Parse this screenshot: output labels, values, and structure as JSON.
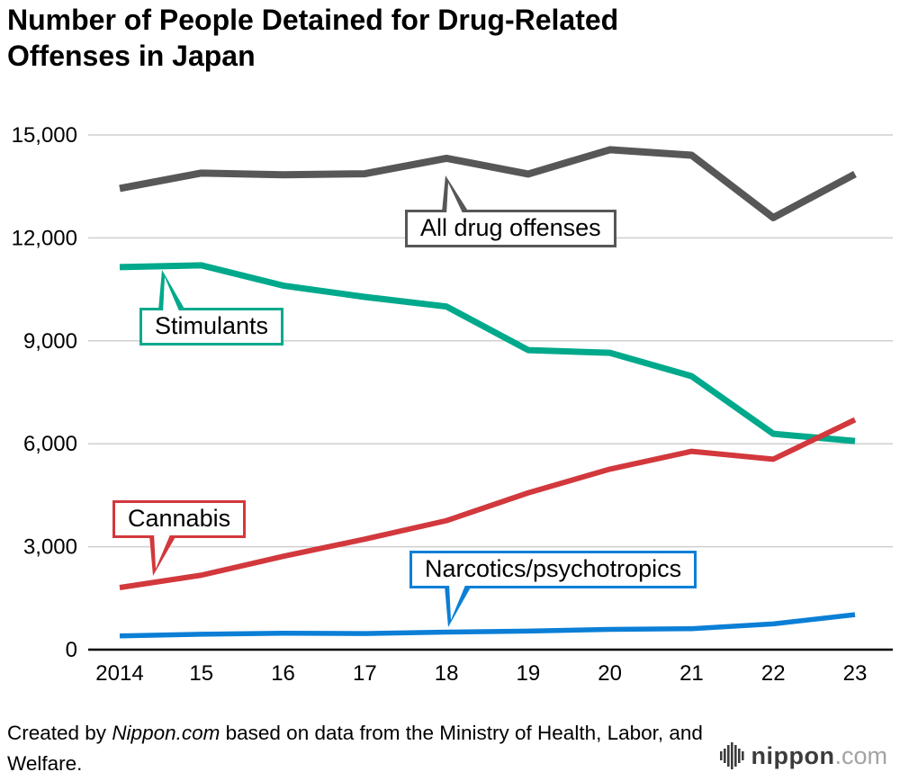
{
  "page": {
    "title": "Number of People Detained for Drug-Related Offenses in Japan"
  },
  "chart_data": {
    "type": "line",
    "title": "Number of People Detained for Drug-Related Offenses in Japan",
    "x": [
      2014,
      2015,
      2016,
      2017,
      2018,
      2019,
      2020,
      2021,
      2022,
      2023
    ],
    "categories": [
      "2014",
      "15",
      "16",
      "17",
      "18",
      "19",
      "20",
      "21",
      "22",
      "23"
    ],
    "ylim": [
      0,
      15000
    ],
    "y_ticks": [
      0,
      3000,
      6000,
      9000,
      12000,
      15000
    ],
    "y_tick_labels": [
      "0",
      "3,000",
      "6,000",
      "9,000",
      "12,000",
      "15,000"
    ],
    "grid": true,
    "legend_position": "inline-callouts",
    "series": [
      {
        "name": "All drug offenses",
        "color": "#575757",
        "values": [
          13440,
          13890,
          13840,
          13870,
          14320,
          13860,
          14570,
          14410,
          12590,
          13860
        ]
      },
      {
        "name": "Stimulants",
        "color": "#00a98b",
        "values": [
          11150,
          11200,
          10610,
          10280,
          10000,
          8730,
          8650,
          7970,
          6290,
          6080
        ]
      },
      {
        "name": "Cannabis",
        "color": "#d2383c",
        "values": [
          1810,
          2170,
          2720,
          3220,
          3760,
          4570,
          5260,
          5780,
          5550,
          6700
        ]
      },
      {
        "name": "Narcotics/psychotropics",
        "color": "#0b7fd6",
        "values": [
          400,
          450,
          480,
          470,
          510,
          540,
          590,
          610,
          750,
          1020
        ]
      }
    ]
  },
  "footer": {
    "credit_prefix": "Created by ",
    "credit_source": "Nippon.com",
    "credit_suffix": " based on data from the Ministry of Health, Labor, and Welfare.",
    "logo_name": "nippon",
    "logo_tld": ".com"
  }
}
